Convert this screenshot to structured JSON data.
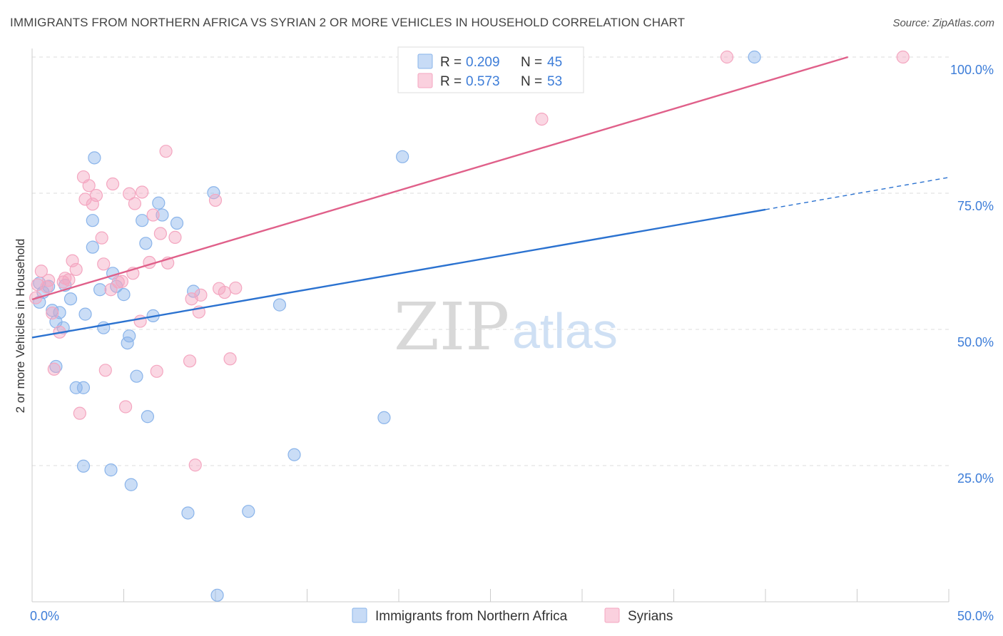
{
  "title": "IMMIGRANTS FROM NORTHERN AFRICA VS SYRIAN 2 OR MORE VEHICLES IN HOUSEHOLD CORRELATION CHART",
  "source": "Source: ZipAtlas.com",
  "watermark": {
    "zip": "ZIP",
    "atlas": "atlas"
  },
  "legend": {
    "r_label": "R =",
    "n_label": "N =",
    "rows": [
      {
        "r": "0.209",
        "n": "45",
        "color": "#8ab4ea"
      },
      {
        "r": "0.573",
        "n": "53",
        "color": "#f4a6c0"
      }
    ]
  },
  "chart_data": {
    "type": "scatter",
    "xlabel": "",
    "ylabel": "2 or more Vehicles in Household",
    "xlim": [
      0,
      50
    ],
    "ylim": [
      0,
      100
    ],
    "x_tick_labels": [
      "0.0%",
      "50.0%"
    ],
    "y_ticks": [
      25,
      50,
      75,
      100
    ],
    "y_tick_labels": [
      "25.0%",
      "50.0%",
      "75.0%",
      "100.0%"
    ],
    "grid": true,
    "legend_position": "top-center",
    "series": [
      {
        "name": "Immigrants from Northern Africa",
        "color": "#8ab4ea",
        "line_color": "#2b72d0",
        "trend": {
          "x0": 0,
          "y0": 48.5,
          "x1": 40,
          "y1": 72.0,
          "dash_to_x": 50,
          "dash_to_y": 77.9
        },
        "points": [
          [
            0.4,
            58.5
          ],
          [
            0.4,
            55.0
          ],
          [
            0.6,
            56.8
          ],
          [
            0.9,
            57.9
          ],
          [
            1.1,
            53.5
          ],
          [
            1.3,
            51.4
          ],
          [
            1.5,
            53.1
          ],
          [
            1.7,
            50.3
          ],
          [
            1.8,
            58.1
          ],
          [
            2.1,
            55.6
          ],
          [
            1.3,
            43.2
          ],
          [
            2.4,
            39.3
          ],
          [
            2.8,
            39.3
          ],
          [
            2.9,
            52.8
          ],
          [
            2.8,
            24.9
          ],
          [
            3.3,
            65.1
          ],
          [
            3.3,
            70.0
          ],
          [
            3.4,
            81.5
          ],
          [
            3.7,
            57.3
          ],
          [
            3.9,
            50.3
          ],
          [
            4.3,
            24.2
          ],
          [
            4.4,
            60.3
          ],
          [
            4.6,
            57.9
          ],
          [
            5.0,
            56.4
          ],
          [
            5.2,
            47.5
          ],
          [
            5.3,
            48.8
          ],
          [
            5.4,
            21.5
          ],
          [
            5.7,
            41.4
          ],
          [
            6.0,
            70.0
          ],
          [
            6.2,
            65.8
          ],
          [
            6.3,
            34.0
          ],
          [
            6.6,
            52.5
          ],
          [
            6.9,
            73.2
          ],
          [
            7.1,
            71.0
          ],
          [
            7.9,
            69.5
          ],
          [
            8.5,
            16.3
          ],
          [
            8.8,
            57.0
          ],
          [
            9.9,
            75.1
          ],
          [
            10.1,
            1.2
          ],
          [
            11.8,
            16.6
          ],
          [
            13.5,
            54.5
          ],
          [
            14.3,
            27.0
          ],
          [
            19.2,
            33.8
          ],
          [
            20.2,
            81.7
          ],
          [
            39.4,
            100.0
          ]
        ]
      },
      {
        "name": "Syrians",
        "color": "#f4a6c0",
        "line_color": "#e0608a",
        "trend": {
          "x0": 0,
          "y0": 55.5,
          "x1": 44.5,
          "y1": 100.0
        },
        "points": [
          [
            0.2,
            55.8
          ],
          [
            0.3,
            58.2
          ],
          [
            0.5,
            60.7
          ],
          [
            0.8,
            57.8
          ],
          [
            0.9,
            59.0
          ],
          [
            1.1,
            53.0
          ],
          [
            1.2,
            42.7
          ],
          [
            1.5,
            49.5
          ],
          [
            1.7,
            58.7
          ],
          [
            1.8,
            59.4
          ],
          [
            2.0,
            59.1
          ],
          [
            2.2,
            62.6
          ],
          [
            2.4,
            61.0
          ],
          [
            2.6,
            34.6
          ],
          [
            2.8,
            78.0
          ],
          [
            2.9,
            73.9
          ],
          [
            3.1,
            76.4
          ],
          [
            3.3,
            73.0
          ],
          [
            3.5,
            74.6
          ],
          [
            3.8,
            66.8
          ],
          [
            3.9,
            62.0
          ],
          [
            4.0,
            42.5
          ],
          [
            4.3,
            57.3
          ],
          [
            4.4,
            76.7
          ],
          [
            4.7,
            58.7
          ],
          [
            4.9,
            58.8
          ],
          [
            5.1,
            35.8
          ],
          [
            5.3,
            74.9
          ],
          [
            5.5,
            60.3
          ],
          [
            5.6,
            73.1
          ],
          [
            5.9,
            51.5
          ],
          [
            6.0,
            75.2
          ],
          [
            6.4,
            62.3
          ],
          [
            6.6,
            71.0
          ],
          [
            6.8,
            42.3
          ],
          [
            7.0,
            67.6
          ],
          [
            7.3,
            82.7
          ],
          [
            7.4,
            62.2
          ],
          [
            7.8,
            66.9
          ],
          [
            8.6,
            44.2
          ],
          [
            8.7,
            55.6
          ],
          [
            8.9,
            25.1
          ],
          [
            9.1,
            53.2
          ],
          [
            9.2,
            56.3
          ],
          [
            10.0,
            73.7
          ],
          [
            10.2,
            57.5
          ],
          [
            10.5,
            56.8
          ],
          [
            10.8,
            44.6
          ],
          [
            11.1,
            57.6
          ],
          [
            27.8,
            88.6
          ],
          [
            27.8,
            100.0
          ],
          [
            37.9,
            100.0
          ],
          [
            47.5,
            100.0
          ]
        ]
      }
    ]
  }
}
